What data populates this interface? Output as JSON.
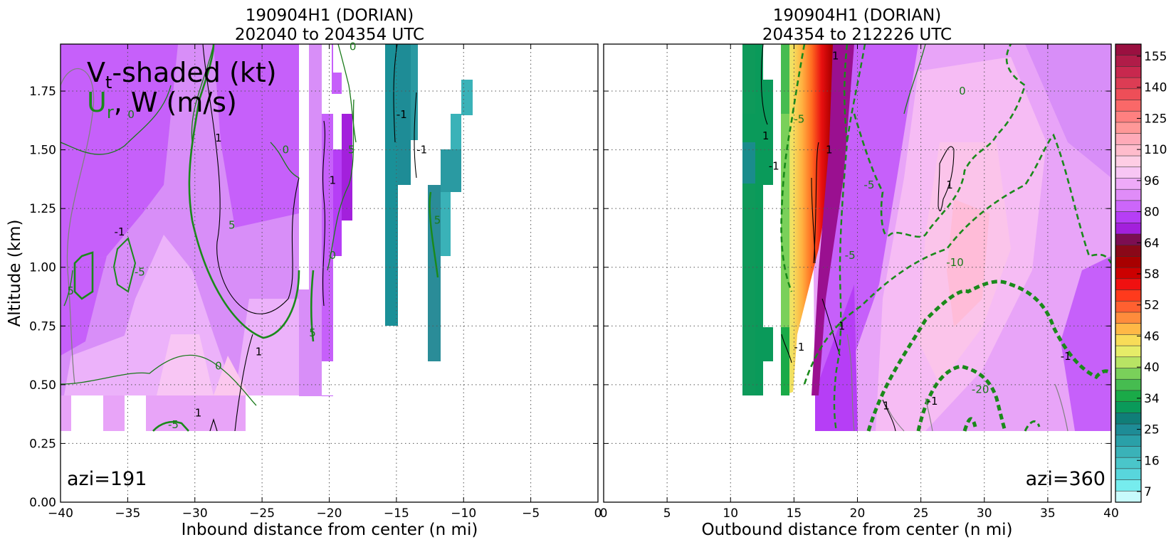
{
  "chart_data": [
    {
      "type": "heatmap",
      "title": [
        "190904H1 (DORIAN)",
        "202040 to 204354 UTC"
      ],
      "xlabel": "Inbound distance from center (n mi)",
      "ylabel": "Altitude (km)",
      "xlim": [
        -40,
        0
      ],
      "ylim": [
        0,
        1.95
      ],
      "xticks": [
        "−40",
        "−35",
        "−30",
        "−25",
        "−20",
        "−15",
        "−10",
        "−5",
        "0"
      ],
      "yticks": [
        "0.00",
        "0.25",
        "0.50",
        "0.75",
        "1.00",
        "1.25",
        "1.50",
        "1.75"
      ],
      "grid": true,
      "annotation_line1": "V",
      "annotation_line1_sub": "t",
      "annotation_line1_rest": "-shaded (kt)",
      "annotation_line2_green": "U",
      "annotation_line2_sub": "r",
      "annotation_line2_rest": ",  W (m/s)",
      "azimuth_label": "azi=191",
      "contour_labels": [
        {
          "text": "0",
          "x": -35,
          "y": 1.65,
          "color": "green"
        },
        {
          "text": "-1",
          "x": -36,
          "y": 1.15,
          "color": "black"
        },
        {
          "text": "-5",
          "x": -34.5,
          "y": 0.98,
          "color": "green"
        },
        {
          "text": "5",
          "x": -39.5,
          "y": 0.9,
          "color": "green"
        },
        {
          "text": "1",
          "x": -28.5,
          "y": 1.55,
          "color": "black"
        },
        {
          "text": "5",
          "x": -27.5,
          "y": 1.18,
          "color": "green"
        },
        {
          "text": "0",
          "x": -23.5,
          "y": 1.5,
          "color": "green"
        },
        {
          "text": "1",
          "x": -25.5,
          "y": 0.64,
          "color": "black"
        },
        {
          "text": "0",
          "x": -28.5,
          "y": 0.58,
          "color": "green"
        },
        {
          "text": "1",
          "x": -30,
          "y": 0.38,
          "color": "black"
        },
        {
          "text": "-5",
          "x": -32,
          "y": 0.33,
          "color": "green"
        },
        {
          "text": "5",
          "x": -21.5,
          "y": 0.72,
          "color": "green"
        },
        {
          "text": "1",
          "x": -20,
          "y": 1.37,
          "color": "black"
        },
        {
          "text": "0",
          "x": -20,
          "y": 1.05,
          "color": "green"
        },
        {
          "text": "0",
          "x": -18.5,
          "y": 1.94,
          "color": "green"
        },
        {
          "text": "5",
          "x": -18.6,
          "y": 1.5,
          "color": "green"
        },
        {
          "text": "-1",
          "x": -15,
          "y": 1.65,
          "color": "black"
        },
        {
          "text": "-1",
          "x": -13.5,
          "y": 1.5,
          "color": "black"
        },
        {
          "text": "5",
          "x": -12.2,
          "y": 1.2,
          "color": "green"
        }
      ]
    },
    {
      "type": "heatmap",
      "title": [
        "190904H1 (DORIAN)",
        "204354 to 212226 UTC"
      ],
      "xlabel": "Outbound distance from center (n mi)",
      "ylabel": "",
      "xlim": [
        0,
        40
      ],
      "ylim": [
        0,
        1.95
      ],
      "xticks": [
        "0",
        "5",
        "10",
        "15",
        "20",
        "25",
        "30",
        "35",
        "40"
      ],
      "grid": true,
      "azimuth_label": "azi=360",
      "contour_labels": [
        {
          "text": "1",
          "x": 18,
          "y": 1.9,
          "color": "black"
        },
        {
          "text": "1",
          "x": 12.5,
          "y": 1.56,
          "color": "black"
        },
        {
          "text": "-1",
          "x": 13,
          "y": 1.43,
          "color": "black"
        },
        {
          "text": "-5",
          "x": 15,
          "y": 1.63,
          "color": "green"
        },
        {
          "text": "1",
          "x": 17.5,
          "y": 1.5,
          "color": "black"
        },
        {
          "text": "-5",
          "x": 20.5,
          "y": 1.35,
          "color": "green"
        },
        {
          "text": "-5",
          "x": 19,
          "y": 1.05,
          "color": "green"
        },
        {
          "text": "1",
          "x": 18.5,
          "y": 0.75,
          "color": "black"
        },
        {
          "text": "-1",
          "x": 15,
          "y": 0.66,
          "color": "black"
        },
        {
          "text": "0",
          "x": 28,
          "y": 1.75,
          "color": "green"
        },
        {
          "text": "1",
          "x": 27,
          "y": 1.35,
          "color": "black"
        },
        {
          "text": "-10",
          "x": 27,
          "y": 1.02,
          "color": "green"
        },
        {
          "text": "-20",
          "x": 29,
          "y": 0.48,
          "color": "green"
        },
        {
          "text": "1",
          "x": 22,
          "y": 0.41,
          "color": "black"
        },
        {
          "text": "-1",
          "x": 25.5,
          "y": 0.43,
          "color": "black"
        },
        {
          "text": "-1",
          "x": 36,
          "y": 0.62,
          "color": "black"
        }
      ]
    }
  ],
  "colorbar": {
    "labels": [
      "155",
      "140",
      "125",
      "110",
      "96",
      "80",
      "64",
      "58",
      "52",
      "46",
      "40",
      "34",
      "25",
      "16",
      "7"
    ],
    "colors": [
      "#9a1040",
      "#b01c48",
      "#c8284e",
      "#dc3c54",
      "#ee4e58",
      "#fa6868",
      "#ff8080",
      "#ff9898",
      "#ffaab8",
      "#ffbccc",
      "#fecde4",
      "#f8c6f4",
      "#eeaaf8",
      "#e08cf8",
      "#cc66fa",
      "#b63ef6",
      "#a320dc",
      "#7c0e52",
      "#8a0818",
      "#a80000",
      "#cc0000",
      "#f01010",
      "#ff3a1c",
      "#ff6030",
      "#ff8c3c",
      "#ffb846",
      "#f8dc58",
      "#e6ec68",
      "#b8e464",
      "#7ad05a",
      "#46bc50",
      "#1aaa48",
      "#0a9a5a",
      "#107e78",
      "#1e8c96",
      "#2aa0a8",
      "#3ab2b8",
      "#4ac6ca",
      "#58d6dc",
      "#76ecee",
      "#c8fafc"
    ]
  }
}
